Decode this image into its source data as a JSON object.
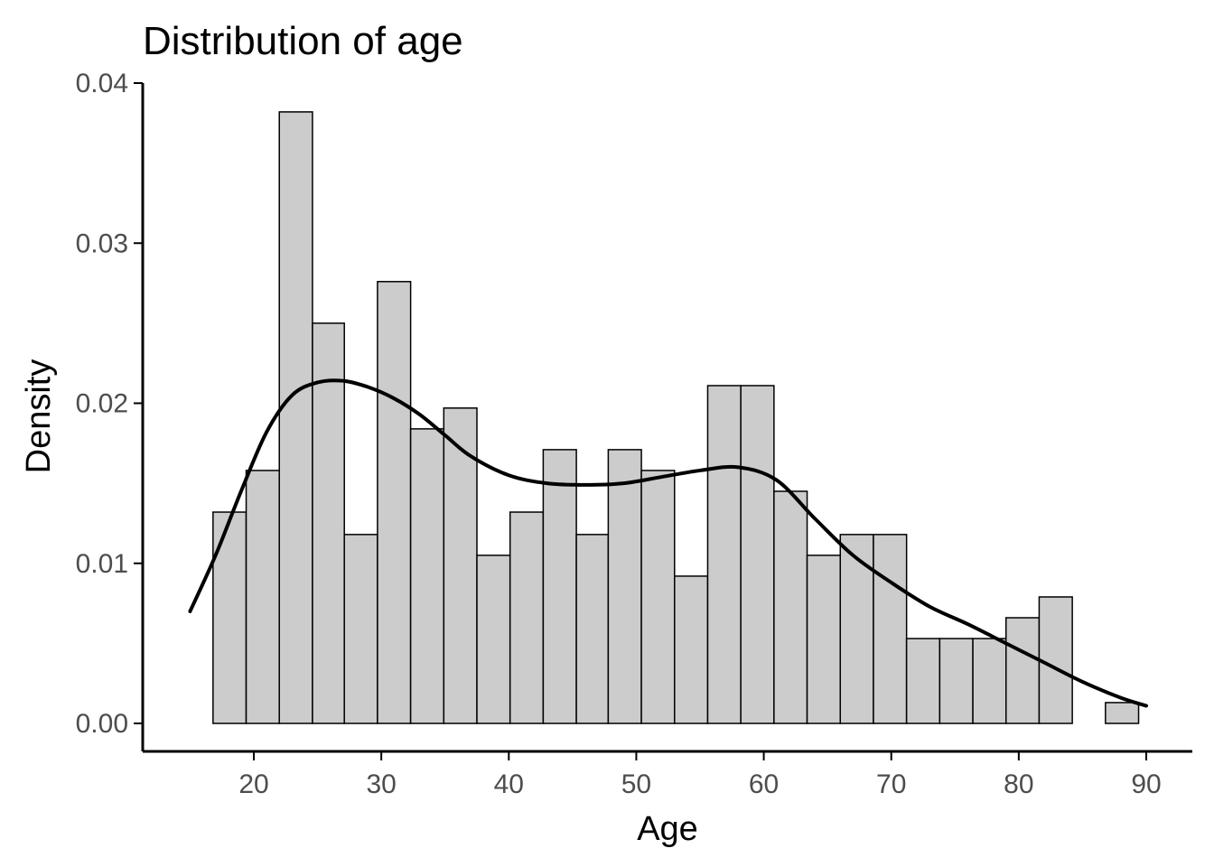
{
  "chart_data": {
    "type": "bar",
    "title": "Distribution of age",
    "xlabel": "Age",
    "ylabel": "Density",
    "xlim": [
      15,
      91
    ],
    "ylim": [
      0,
      0.04
    ],
    "grid": false,
    "legend": "none",
    "colors": {
      "bar_fill": "#cccccc",
      "bar_outline": "#000000",
      "density_line": "#000000",
      "tick_text": "#4d4d4d"
    },
    "x_ticks": [
      20,
      30,
      40,
      50,
      60,
      70,
      80,
      90
    ],
    "x_tick_labels": [
      "20",
      "30",
      "40",
      "50",
      "60",
      "70",
      "80",
      "90"
    ],
    "y_ticks": [
      0,
      0.01,
      0.02,
      0.03,
      0.04
    ],
    "y_tick_labels": [
      "0.00",
      "0.01",
      "0.02",
      "0.03",
      "0.04"
    ],
    "bins": [
      {
        "x0": 16.8,
        "x1": 19.4,
        "density": 0.0132
      },
      {
        "x0": 19.4,
        "x1": 22.0,
        "density": 0.0158
      },
      {
        "x0": 22.0,
        "x1": 24.6,
        "density": 0.0382
      },
      {
        "x0": 24.6,
        "x1": 27.1,
        "density": 0.025
      },
      {
        "x0": 27.1,
        "x1": 29.7,
        "density": 0.0118
      },
      {
        "x0": 29.7,
        "x1": 32.3,
        "density": 0.0276
      },
      {
        "x0": 32.3,
        "x1": 34.9,
        "density": 0.0184
      },
      {
        "x0": 34.9,
        "x1": 37.5,
        "density": 0.0197
      },
      {
        "x0": 37.5,
        "x1": 40.1,
        "density": 0.0105
      },
      {
        "x0": 40.1,
        "x1": 42.7,
        "density": 0.0132
      },
      {
        "x0": 42.7,
        "x1": 45.3,
        "density": 0.0171
      },
      {
        "x0": 45.3,
        "x1": 47.8,
        "density": 0.0118
      },
      {
        "x0": 47.8,
        "x1": 50.4,
        "density": 0.0171
      },
      {
        "x0": 50.4,
        "x1": 53.0,
        "density": 0.0158
      },
      {
        "x0": 53.0,
        "x1": 55.6,
        "density": 0.0092
      },
      {
        "x0": 55.6,
        "x1": 58.2,
        "density": 0.0211
      },
      {
        "x0": 58.2,
        "x1": 60.8,
        "density": 0.0211
      },
      {
        "x0": 60.8,
        "x1": 63.4,
        "density": 0.0145
      },
      {
        "x0": 63.4,
        "x1": 66.0,
        "density": 0.0105
      },
      {
        "x0": 66.0,
        "x1": 68.6,
        "density": 0.0118
      },
      {
        "x0": 68.6,
        "x1": 71.2,
        "density": 0.0118
      },
      {
        "x0": 71.2,
        "x1": 73.8,
        "density": 0.0053
      },
      {
        "x0": 73.8,
        "x1": 76.4,
        "density": 0.0053
      },
      {
        "x0": 76.4,
        "x1": 79.0,
        "density": 0.0053
      },
      {
        "x0": 79.0,
        "x1": 81.6,
        "density": 0.0066
      },
      {
        "x0": 81.6,
        "x1": 84.2,
        "density": 0.0079
      },
      {
        "x0": 84.2,
        "x1": 86.8,
        "density": 0.0
      },
      {
        "x0": 86.8,
        "x1": 89.4,
        "density": 0.0013
      }
    ],
    "density_curve": {
      "x": [
        15,
        17,
        19,
        21,
        23,
        25,
        27,
        29,
        31,
        33,
        35,
        37,
        40,
        43,
        46,
        49,
        52,
        55,
        58,
        61,
        64,
        67,
        70,
        73,
        76,
        79,
        82,
        85,
        88,
        90
      ],
      "y": [
        0.007,
        0.0105,
        0.0145,
        0.0182,
        0.0205,
        0.0213,
        0.0214,
        0.021,
        0.0203,
        0.0193,
        0.018,
        0.0167,
        0.0155,
        0.015,
        0.0149,
        0.015,
        0.0154,
        0.0158,
        0.016,
        0.0152,
        0.0128,
        0.0105,
        0.0088,
        0.0073,
        0.0062,
        0.005,
        0.0038,
        0.0026,
        0.0016,
        0.0011
      ]
    }
  }
}
